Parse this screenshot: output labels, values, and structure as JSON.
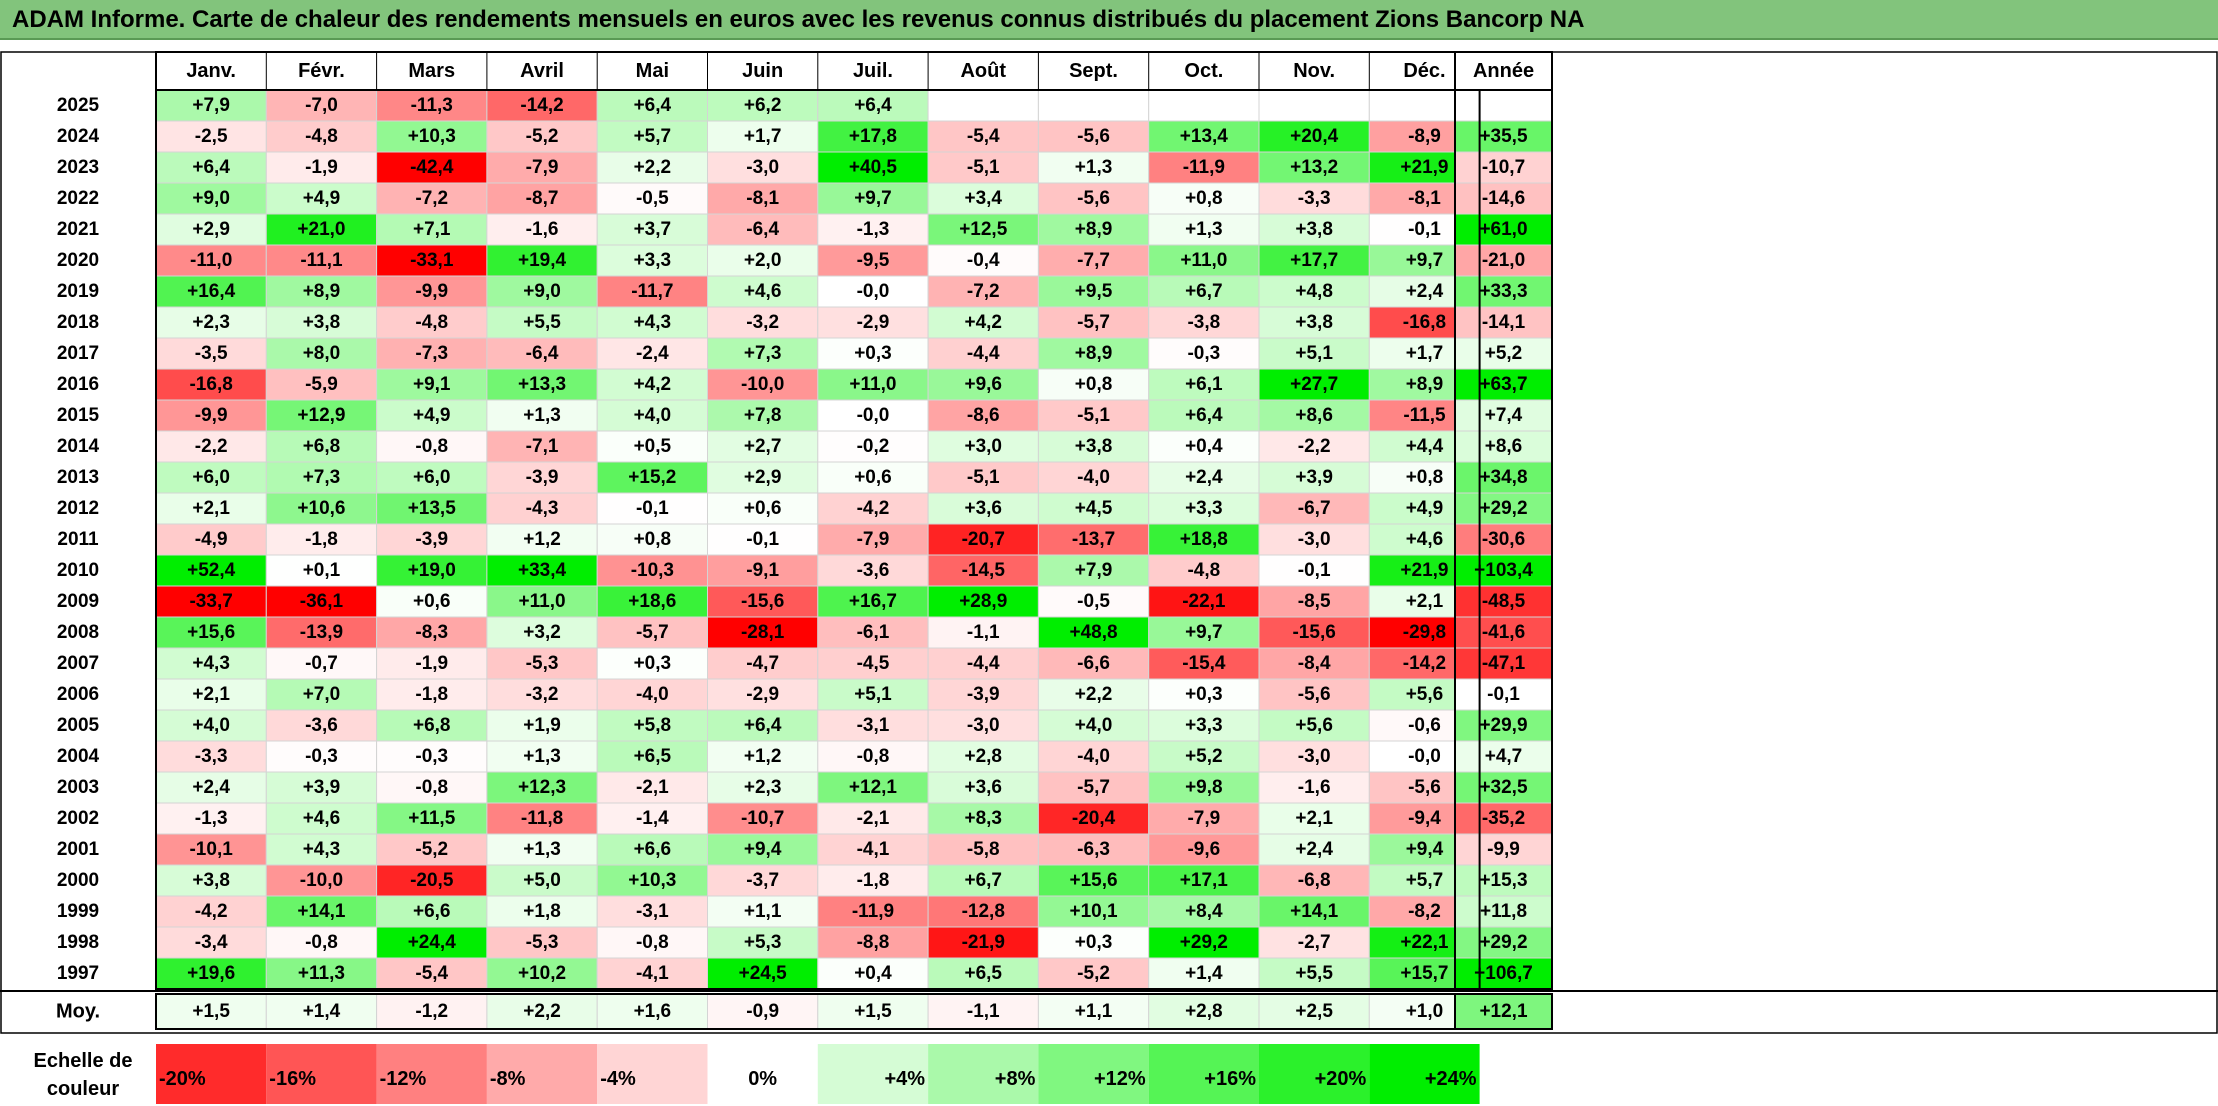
{
  "title": "ADAM Informe. Carte de chaleur des rendements mensuels en euros avec les revenus connus distribués du placement Zions Bancorp NA",
  "chart_data": {
    "type": "heatmap",
    "title": "ADAM Informe. Carte de chaleur des rendements mensuels en euros avec les revenus connus distribués du placement Zions Bancorp NA",
    "months": [
      "Janv.",
      "Févr.",
      "Mars",
      "Avril",
      "Mai",
      "Juin",
      "Juil.",
      "Août",
      "Sept.",
      "Oct.",
      "Nov.",
      "Déc."
    ],
    "year_header": "Année",
    "rows": [
      {
        "year": "2025",
        "values": [
          "+7,9",
          "-7,0",
          "-11,3",
          "-14,2",
          "+6,4",
          "+6,2",
          "+6,4",
          "",
          "",
          "",
          "",
          ""
        ],
        "annual": ""
      },
      {
        "year": "2024",
        "values": [
          "-2,5",
          "-4,8",
          "+10,3",
          "-5,2",
          "+5,7",
          "+1,7",
          "+17,8",
          "-5,4",
          "-5,6",
          "+13,4",
          "+20,4",
          "-8,9"
        ],
        "annual": "+35,5"
      },
      {
        "year": "2023",
        "values": [
          "+6,4",
          "-1,9",
          "-42,4",
          "-7,9",
          "+2,2",
          "-3,0",
          "+40,5",
          "-5,1",
          "+1,3",
          "-11,9",
          "+13,2",
          "+21,9"
        ],
        "annual": "-10,7"
      },
      {
        "year": "2022",
        "values": [
          "+9,0",
          "+4,9",
          "-7,2",
          "-8,7",
          "-0,5",
          "-8,1",
          "+9,7",
          "+3,4",
          "-5,6",
          "+0,8",
          "-3,3",
          "-8,1"
        ],
        "annual": "-14,6"
      },
      {
        "year": "2021",
        "values": [
          "+2,9",
          "+21,0",
          "+7,1",
          "-1,6",
          "+3,7",
          "-6,4",
          "-1,3",
          "+12,5",
          "+8,9",
          "+1,3",
          "+3,8",
          "-0,1"
        ],
        "annual": "+61,0"
      },
      {
        "year": "2020",
        "values": [
          "-11,0",
          "-11,1",
          "-33,1",
          "+19,4",
          "+3,3",
          "+2,0",
          "-9,5",
          "-0,4",
          "-7,7",
          "+11,0",
          "+17,7",
          "+9,7"
        ],
        "annual": "-21,0"
      },
      {
        "year": "2019",
        "values": [
          "+16,4",
          "+8,9",
          "-9,9",
          "+9,0",
          "-11,7",
          "+4,6",
          "-0,0",
          "-7,2",
          "+9,5",
          "+6,7",
          "+4,8",
          "+2,4"
        ],
        "annual": "+33,3"
      },
      {
        "year": "2018",
        "values": [
          "+2,3",
          "+3,8",
          "-4,8",
          "+5,5",
          "+4,3",
          "-3,2",
          "-2,9",
          "+4,2",
          "-5,7",
          "-3,8",
          "+3,8",
          "-16,8"
        ],
        "annual": "-14,1"
      },
      {
        "year": "2017",
        "values": [
          "-3,5",
          "+8,0",
          "-7,3",
          "-6,4",
          "-2,4",
          "+7,3",
          "+0,3",
          "-4,4",
          "+8,9",
          "-0,3",
          "+5,1",
          "+1,7"
        ],
        "annual": "+5,2"
      },
      {
        "year": "2016",
        "values": [
          "-16,8",
          "-5,9",
          "+9,1",
          "+13,3",
          "+4,2",
          "-10,0",
          "+11,0",
          "+9,6",
          "+0,8",
          "+6,1",
          "+27,7",
          "+8,9"
        ],
        "annual": "+63,7"
      },
      {
        "year": "2015",
        "values": [
          "-9,9",
          "+12,9",
          "+4,9",
          "+1,3",
          "+4,0",
          "+7,8",
          "-0,0",
          "-8,6",
          "-5,1",
          "+6,4",
          "+8,6",
          "-11,5"
        ],
        "annual": "+7,4"
      },
      {
        "year": "2014",
        "values": [
          "-2,2",
          "+6,8",
          "-0,8",
          "-7,1",
          "+0,5",
          "+2,7",
          "-0,2",
          "+3,0",
          "+3,8",
          "+0,4",
          "-2,2",
          "+4,4"
        ],
        "annual": "+8,6"
      },
      {
        "year": "2013",
        "values": [
          "+6,0",
          "+7,3",
          "+6,0",
          "-3,9",
          "+15,2",
          "+2,9",
          "+0,6",
          "-5,1",
          "-4,0",
          "+2,4",
          "+3,9",
          "+0,8"
        ],
        "annual": "+34,8"
      },
      {
        "year": "2012",
        "values": [
          "+2,1",
          "+10,6",
          "+13,5",
          "-4,3",
          "-0,1",
          "+0,6",
          "-4,2",
          "+3,6",
          "+4,5",
          "+3,3",
          "-6,7",
          "+4,9"
        ],
        "annual": "+29,2"
      },
      {
        "year": "2011",
        "values": [
          "-4,9",
          "-1,8",
          "-3,9",
          "+1,2",
          "+0,8",
          "-0,1",
          "-7,9",
          "-20,7",
          "-13,7",
          "+18,8",
          "-3,0",
          "+4,6"
        ],
        "annual": "-30,6"
      },
      {
        "year": "2010",
        "values": [
          "+52,4",
          "+0,1",
          "+19,0",
          "+33,4",
          "-10,3",
          "-9,1",
          "-3,6",
          "-14,5",
          "+7,9",
          "-4,8",
          "-0,1",
          "+21,9"
        ],
        "annual": "+103,4"
      },
      {
        "year": "2009",
        "values": [
          "-33,7",
          "-36,1",
          "+0,6",
          "+11,0",
          "+18,6",
          "-15,6",
          "+16,7",
          "+28,9",
          "-0,5",
          "-22,1",
          "-8,5",
          "+2,1"
        ],
        "annual": "-48,5"
      },
      {
        "year": "2008",
        "values": [
          "+15,6",
          "-13,9",
          "-8,3",
          "+3,2",
          "-5,7",
          "-28,1",
          "-6,1",
          "-1,1",
          "+48,8",
          "+9,7",
          "-15,6",
          "-29,8"
        ],
        "annual": "-41,6"
      },
      {
        "year": "2007",
        "values": [
          "+4,3",
          "-0,7",
          "-1,9",
          "-5,3",
          "+0,3",
          "-4,7",
          "-4,5",
          "-4,4",
          "-6,6",
          "-15,4",
          "-8,4",
          "-14,2"
        ],
        "annual": "-47,1"
      },
      {
        "year": "2006",
        "values": [
          "+2,1",
          "+7,0",
          "-1,8",
          "-3,2",
          "-4,0",
          "-2,9",
          "+5,1",
          "-3,9",
          "+2,2",
          "+0,3",
          "-5,6",
          "+5,6"
        ],
        "annual": "-0,1"
      },
      {
        "year": "2005",
        "values": [
          "+4,0",
          "-3,6",
          "+6,8",
          "+1,9",
          "+5,8",
          "+6,4",
          "-3,1",
          "-3,0",
          "+4,0",
          "+3,3",
          "+5,6",
          "-0,6"
        ],
        "annual": "+29,9"
      },
      {
        "year": "2004",
        "values": [
          "-3,3",
          "-0,3",
          "-0,3",
          "+1,3",
          "+6,5",
          "+1,2",
          "-0,8",
          "+2,8",
          "-4,0",
          "+5,2",
          "-3,0",
          "-0,0"
        ],
        "annual": "+4,7"
      },
      {
        "year": "2003",
        "values": [
          "+2,4",
          "+3,9",
          "-0,8",
          "+12,3",
          "-2,1",
          "+2,3",
          "+12,1",
          "+3,6",
          "-5,7",
          "+9,8",
          "-1,6",
          "-5,6"
        ],
        "annual": "+32,5"
      },
      {
        "year": "2002",
        "values": [
          "-1,3",
          "+4,6",
          "+11,5",
          "-11,8",
          "-1,4",
          "-10,7",
          "-2,1",
          "+8,3",
          "-20,4",
          "-7,9",
          "+2,1",
          "-9,4"
        ],
        "annual": "-35,2"
      },
      {
        "year": "2001",
        "values": [
          "-10,1",
          "+4,3",
          "-5,2",
          "+1,3",
          "+6,6",
          "+9,4",
          "-4,1",
          "-5,8",
          "-6,3",
          "-9,6",
          "+2,4",
          "+9,4"
        ],
        "annual": "-9,9"
      },
      {
        "year": "2000",
        "values": [
          "+3,8",
          "-10,0",
          "-20,5",
          "+5,0",
          "+10,3",
          "-3,7",
          "-1,8",
          "+6,7",
          "+15,6",
          "+17,1",
          "-6,8",
          "+5,7"
        ],
        "annual": "+15,3"
      },
      {
        "year": "1999",
        "values": [
          "-4,2",
          "+14,1",
          "+6,6",
          "+1,8",
          "-3,1",
          "+1,1",
          "-11,9",
          "-12,8",
          "+10,1",
          "+8,4",
          "+14,1",
          "-8,2"
        ],
        "annual": "+11,8"
      },
      {
        "year": "1998",
        "values": [
          "-3,4",
          "-0,8",
          "+24,4",
          "-5,3",
          "-0,8",
          "+5,3",
          "-8,8",
          "-21,9",
          "+0,3",
          "+29,2",
          "-2,7",
          "+22,1"
        ],
        "annual": "+29,2"
      },
      {
        "year": "1997",
        "values": [
          "+19,6",
          "+11,3",
          "-5,4",
          "+10,2",
          "-4,1",
          "+24,5",
          "+0,4",
          "+6,5",
          "-5,2",
          "+1,4",
          "+5,5",
          "+15,7"
        ],
        "annual": "+106,7"
      }
    ],
    "average": {
      "label": "Moy.",
      "values": [
        "+1,5",
        "+1,4",
        "-1,2",
        "+2,2",
        "+1,6",
        "-0,9",
        "+1,5",
        "-1,1",
        "+1,1",
        "+2,8",
        "+2,5",
        "+1,0"
      ],
      "annual": "+12,1"
    },
    "scale": {
      "label_line1": "Echelle de",
      "label_line2": "couleur",
      "stops": [
        "-20%",
        "-16%",
        "-12%",
        "-8%",
        "-4%",
        "0%",
        "+4%",
        "+8%",
        "+12%",
        "+16%",
        "+20%",
        "+24%"
      ]
    },
    "colors": {
      "negative_max": "#ff0000",
      "neutral": "#ffffff",
      "positive_max": "#00ee00"
    }
  }
}
